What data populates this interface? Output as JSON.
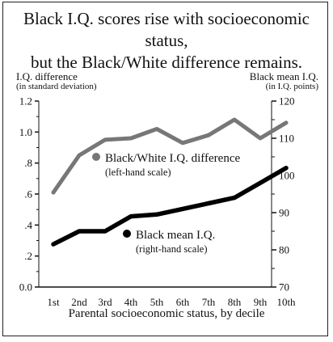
{
  "title_lines": [
    "Black I.Q. scores rise with socioeconomic status,",
    "but the Black/White difference remains."
  ],
  "chart_data": {
    "type": "line",
    "title": "Black I.Q. scores rise with socioeconomic status, but the Black/White difference remains.",
    "xlabel": "Parental socioeconomic status, by decile",
    "categories": [
      "1st",
      "2nd",
      "3rd",
      "4th",
      "5th",
      "6th",
      "7th",
      "8th",
      "9th",
      "10th"
    ],
    "left_axis": {
      "label": "I.Q. difference",
      "sublabel": "(in standard deviation)",
      "ylim": [
        0.0,
        1.2
      ],
      "ticks": [
        0.0,
        0.2,
        0.4,
        0.6,
        0.8,
        1.0,
        1.2
      ],
      "tick_labels": [
        "0.0",
        ".2",
        ".4",
        ".6",
        ".8",
        "1.0",
        "1.2"
      ]
    },
    "right_axis": {
      "label": "Black mean I.Q.",
      "sublabel": "(in I.Q. points)",
      "ylim": [
        70,
        120
      ],
      "ticks": [
        70,
        80,
        90,
        100,
        110,
        120
      ],
      "tick_labels": [
        "70",
        "80",
        "90",
        "100",
        "110",
        "120"
      ]
    },
    "series": [
      {
        "name": "Black/White I.Q. difference",
        "note": "(left-hand scale)",
        "axis": "left",
        "color": "#777777",
        "values": [
          0.61,
          0.85,
          0.95,
          0.96,
          1.02,
          0.93,
          0.98,
          1.08,
          0.96,
          1.06
        ]
      },
      {
        "name": "Black mean I.Q.",
        "note": "(right-hand scale)",
        "axis": "right",
        "color": "#000000",
        "values": [
          81.5,
          85,
          85,
          89,
          89.5,
          91,
          92.5,
          94,
          98,
          102
        ]
      }
    ],
    "grid": false,
    "legend_placement": "inline labels"
  }
}
